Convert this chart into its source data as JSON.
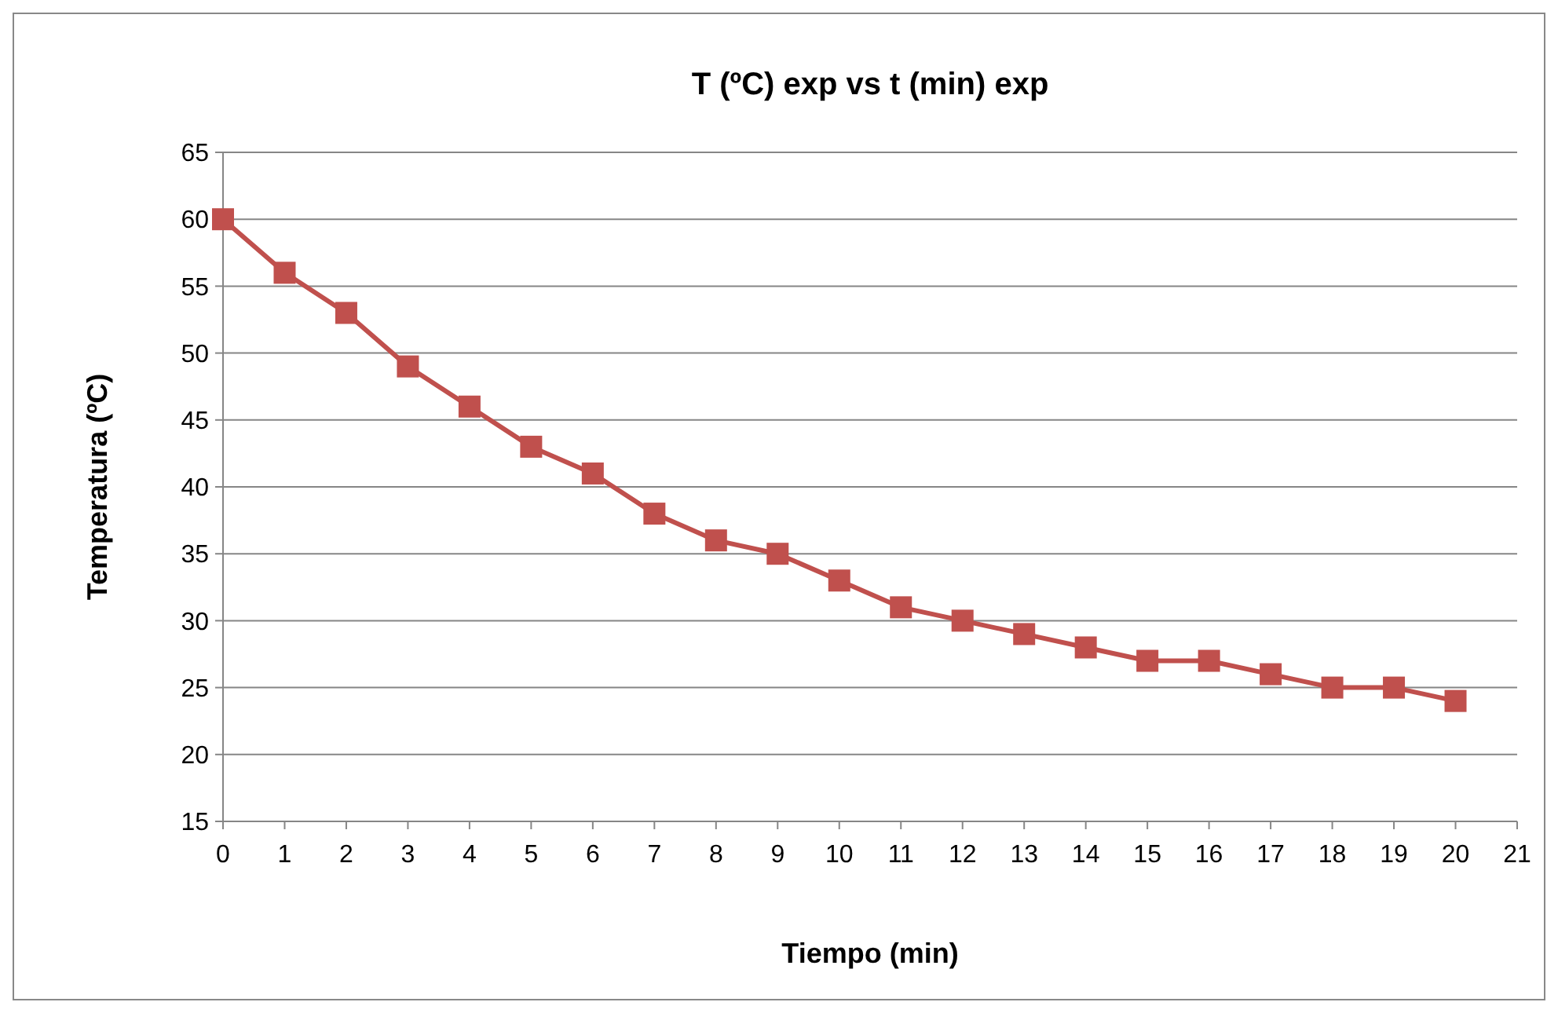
{
  "chart_data": {
    "type": "line",
    "title": "T (ºC) exp vs t (min) exp",
    "xlabel": "Tiempo (min)",
    "ylabel": "Temperatura (ºC)",
    "x": [
      0,
      1,
      2,
      3,
      4,
      5,
      6,
      7,
      8,
      9,
      10,
      11,
      12,
      13,
      14,
      15,
      16,
      17,
      18,
      19,
      20
    ],
    "series": [
      {
        "color": "#c0504d",
        "values": [
          60,
          56,
          53,
          49,
          46,
          43,
          41,
          38,
          36,
          35,
          33,
          31,
          30,
          29,
          28,
          27,
          27,
          26,
          25,
          25,
          24
        ]
      }
    ],
    "xlim": [
      0,
      21
    ],
    "xticks": [
      0,
      1,
      2,
      3,
      4,
      5,
      6,
      7,
      8,
      9,
      10,
      11,
      12,
      13,
      14,
      15,
      16,
      17,
      18,
      19,
      20,
      21
    ],
    "ylim": [
      15,
      65
    ],
    "yticks": [
      15,
      20,
      25,
      30,
      35,
      40,
      45,
      50,
      55,
      60,
      65
    ],
    "grid": "y",
    "marker": "square",
    "line_style": "solid"
  }
}
